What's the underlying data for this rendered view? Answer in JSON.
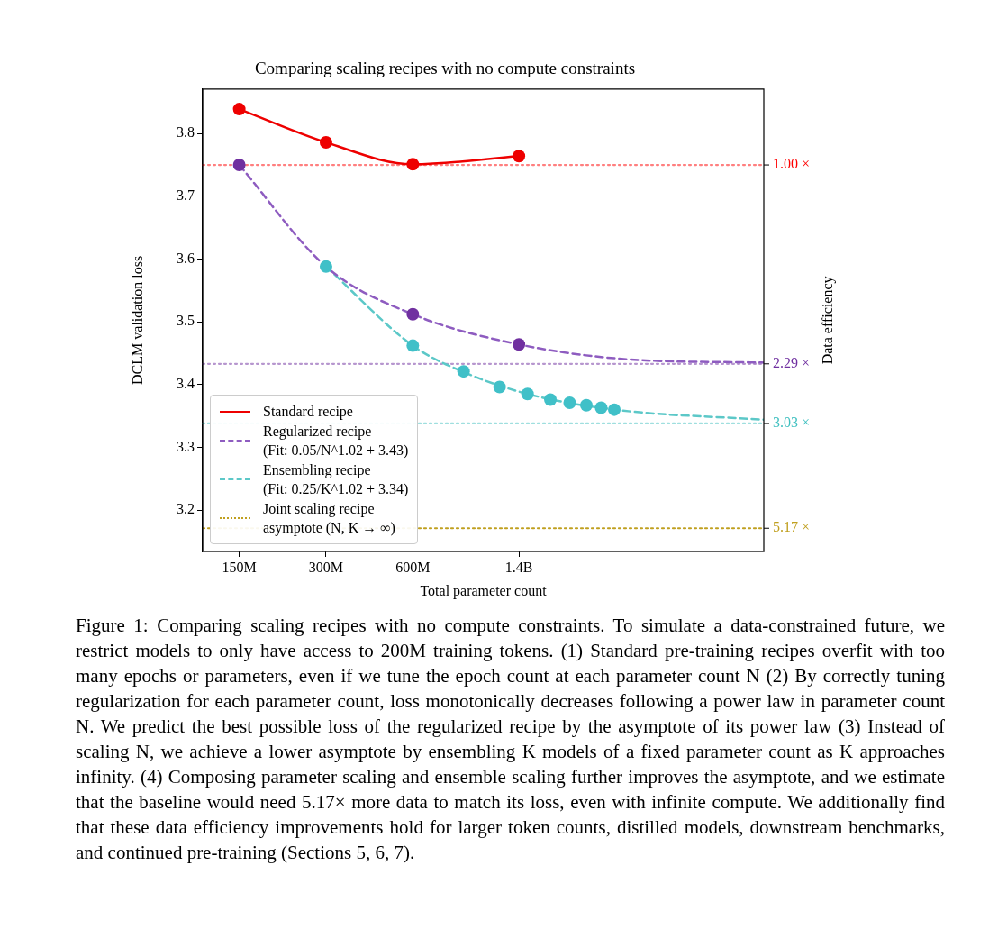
{
  "chart_data": {
    "type": "line",
    "title": "Comparing scaling recipes with no compute constraints",
    "xlabel": "Total parameter count",
    "ylabel": "DCLM validation loss",
    "y2label": "Data efficiency",
    "log": "x",
    "grid": false,
    "legend": "bottom left",
    "xlim": [
      112000000,
      9900000000
    ],
    "xticks": [
      {
        "value": 150000000,
        "label": "150M"
      },
      {
        "value": 300000000,
        "label": "300M"
      },
      {
        "value": 600000000,
        "label": "600M"
      },
      {
        "value": 1400000000,
        "label": "1.4B"
      }
    ],
    "ylim": [
      3.134,
      3.871
    ],
    "yticks": [
      3.2,
      3.3,
      3.4,
      3.5,
      3.6,
      3.7,
      3.8
    ],
    "series": [
      {
        "name": "Standard recipe",
        "color": "#ee0000",
        "x": [
          150000000,
          300000000,
          600000000,
          1400000000
        ],
        "values": [
          3.839,
          3.786,
          3.751,
          3.764
        ],
        "marker": "circle",
        "line_style": "solid"
      },
      {
        "name": "Regularized recipe\n(Fit: 0.05/N^1.02 + 3.43)",
        "color": "#8e5cc0",
        "x": [
          150000000,
          300000000,
          600000000,
          1400000000,
          3400000000,
          9900000000
        ],
        "values": [
          3.75,
          3.588,
          3.512,
          3.464,
          3.44,
          3.435
        ],
        "marker": "none",
        "line_style": "dashed"
      },
      {
        "type": "scatter",
        "color": "#7030a0",
        "x": [
          150000000,
          600000000,
          1400000000
        ],
        "values": [
          3.75,
          3.512,
          3.464
        ],
        "marker": "circle"
      },
      {
        "name": "Ensembling recipe\n(Fit: 0.25/K^1.02 + 3.34)",
        "color": "#5cc8c8",
        "x": [
          300000000,
          600000000,
          900000000,
          1500000000,
          3000000000,
          9900000000
        ],
        "values": [
          3.588,
          3.462,
          3.42,
          3.385,
          3.36,
          3.344
        ],
        "marker": "none",
        "line_style": "dashed"
      },
      {
        "type": "scatter",
        "color": "#40c0c8",
        "x": [
          300000000,
          600000000,
          900000000,
          1200000000,
          1500000000,
          1800000000,
          2100000000,
          2400000000,
          2700000000,
          3000000000
        ],
        "values": [
          3.588,
          3.462,
          3.421,
          3.396,
          3.385,
          3.376,
          3.371,
          3.367,
          3.363,
          3.36
        ],
        "marker": "circle"
      },
      {
        "name": "Joint scaling recipe\nasymptote (N, K → ∞)",
        "color": "#c0a020",
        "x": [
          112000000,
          9900000000
        ],
        "values": [
          3.171,
          3.171
        ],
        "marker": "none",
        "line_style": "dotted"
      }
    ],
    "ref_lines": [
      {
        "axis": "y",
        "value": 3.75,
        "color": "#ff0000",
        "line_style": "dotted",
        "label": "1.00 ×"
      },
      {
        "axis": "y",
        "value": 3.433,
        "color": "#7030a0",
        "line_style": "dotted",
        "label": "2.29 ×"
      },
      {
        "axis": "y",
        "value": 3.338,
        "color": "#40c0c0",
        "line_style": "dotted",
        "label": "3.03 ×"
      }
    ],
    "annotations": [
      "5.17 ×",
      "Figure 1: Comparing scaling recipes with no compute constraints. To simulate a data-constrained future, we restrict models to only have access to 200M training tokens. (1) Standard pre-training recipes overfit with too many epochs or parameters, even if we tune the epoch count at each parameter count N (2) By correctly tuning regularization for each parameter count, loss monotonically decreases following a power law in parameter count N. We predict the best possible loss of the regularized recipe by the asymptote of its power law (3) Instead of scaling N, we achieve a lower asymptote by ensembling K models of a fixed parameter count as K approaches infinity. (4) Composing parameter scaling and ensemble scaling further improves the asymptote, and we estimate that the baseline would need 5.17× more data to match its loss, even with infinite compute. We additionally find that these data efficiency improvements hold for larger token counts, distilled models, downstream benchmarks, and continued pre-training (Sections 5, 6, 7)."
    ]
  }
}
